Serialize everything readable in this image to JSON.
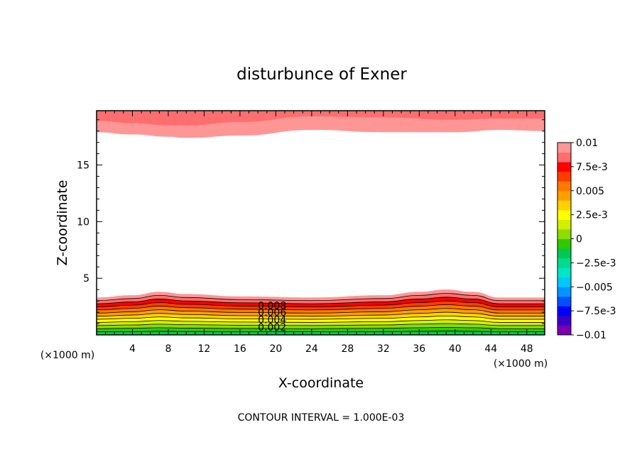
{
  "chart_data": {
    "type": "contour",
    "title": "disturbunce of Exner",
    "xlabel": "X-coordinate",
    "ylabel": "Z-coordinate",
    "x_unit_left": "(×1000 m)",
    "x_unit_right": "(×1000 m)",
    "footer": "CONTOUR INTERVAL = 1.000E-03",
    "xlim": [
      0,
      50
    ],
    "ylim": [
      0,
      19.8
    ],
    "xticks": [
      4,
      8,
      12,
      16,
      20,
      24,
      28,
      32,
      36,
      40,
      44,
      48
    ],
    "yticks": [
      5,
      10,
      15
    ],
    "contour_interval": 0.001,
    "contour_labels": [
      {
        "text": "0.008",
        "x": 18,
        "y": 2.6
      },
      {
        "text": "0.006",
        "x": 18,
        "y": 2.0
      },
      {
        "text": "0.004",
        "x": 18,
        "y": 1.35
      },
      {
        "text": "0.002",
        "x": 18,
        "y": 0.7
      }
    ],
    "colorbar": {
      "labels": [
        "0.01",
        "7.5e-3",
        "0.005",
        "2.5e-3",
        "0",
        "−2.5e-3",
        "−0.005",
        "−7.5e-3",
        "−0.01"
      ],
      "colors": [
        "#7a00b0",
        "#3a00c8",
        "#0000ff",
        "#0050ff",
        "#0096ff",
        "#00c8ff",
        "#00e6c8",
        "#00dc8c",
        "#00c850",
        "#32c800",
        "#8cdc00",
        "#d2ef00",
        "#ffff00",
        "#ffd200",
        "#ffa000",
        "#ff7800",
        "#ff3c00",
        "#ff0000",
        "#ff6e6e",
        "#ff9696"
      ]
    },
    "bottom_layers": {
      "x": [
        0,
        4,
        7,
        10,
        16,
        24,
        32,
        36,
        39,
        42,
        45,
        50
      ],
      "top_boundary": [
        3.3,
        3.5,
        3.8,
        3.6,
        3.4,
        3.3,
        3.5,
        3.8,
        4.0,
        3.8,
        3.3,
        3.3
      ],
      "colors": [
        "#00c850",
        "#32c800",
        "#8cdc00",
        "#d2ef00",
        "#ffff00",
        "#ffd200",
        "#ffa000",
        "#ff7800",
        "#ff3c00",
        "#ff0000",
        "#ff6e6e",
        "#ff9696"
      ]
    },
    "top_layers": {
      "x": [
        0,
        4,
        8,
        10,
        16,
        24,
        32,
        40,
        45,
        50
      ],
      "bottom_boundaries": [
        [
          17.9,
          17.7,
          17.5,
          17.4,
          17.6,
          18.1,
          17.9,
          17.9,
          18.1,
          18.0
        ],
        [
          18.9,
          18.7,
          18.5,
          18.5,
          18.8,
          19.3,
          19.2,
          19.0,
          19.1,
          19.1
        ]
      ],
      "colors": [
        "#ff9696",
        "#ff6e6e"
      ]
    }
  }
}
